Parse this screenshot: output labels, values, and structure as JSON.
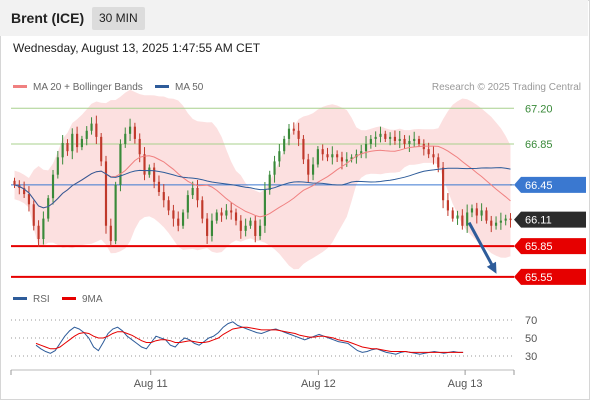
{
  "instrument": "Brent (ICE)",
  "timeframe": "30 MIN",
  "timestamp": "Wednesday, August 13, 2025 1:47:55 AM CET",
  "legend": {
    "ma20": "MA 20 + Bollinger Bands",
    "ma50": "MA 50",
    "rsi": "RSI",
    "ma9": "9MA"
  },
  "credit": "Research © 2025 Trading Central",
  "colors": {
    "up": "#3a8a3a",
    "down": "#c0392b",
    "ma20": "#f08080",
    "ma50": "#2e5c9a",
    "band": "#fbdada",
    "red_level": "#e60000",
    "blue_level": "#3a78d0",
    "green_level": "#a8d08d",
    "arrow": "#2e5c9a"
  },
  "chart_data": [
    {
      "type": "candlestick",
      "y_range": [
        65.47,
        67.33
      ],
      "x_range": [
        0,
        144
      ],
      "x_ticks": [
        {
          "x": 40,
          "label": "Aug 11"
        },
        {
          "x": 88,
          "label": "Aug 12"
        },
        {
          "x": 130,
          "label": "Aug 13"
        }
      ],
      "levels": [
        {
          "value": 67.2,
          "label": "67.20",
          "style": "green-text"
        },
        {
          "value": 66.85,
          "label": "66.85",
          "style": "green-text"
        },
        {
          "value": 66.45,
          "label": "66.45",
          "style": "blue-tag"
        },
        {
          "value": 66.11,
          "label": "66.11",
          "style": "price-tag"
        },
        {
          "value": 65.85,
          "label": "65.85",
          "style": "red-tag"
        },
        {
          "value": 65.55,
          "label": "65.55",
          "style": "red-tag"
        }
      ],
      "projection": {
        "from": [
          130,
          66.11
        ],
        "to": [
          139,
          65.58
        ]
      },
      "closes": [
        66.45,
        66.42,
        66.36,
        66.26,
        66.05,
        65.92,
        66.12,
        66.32,
        66.55,
        66.72,
        66.86,
        66.78,
        66.95,
        66.82,
        66.9,
        66.98,
        67.05,
        66.92,
        66.68,
        66.05,
        65.9,
        66.45,
        66.85,
        66.95,
        67.02,
        66.9,
        66.75,
        66.55,
        66.62,
        66.48,
        66.38,
        66.3,
        66.2,
        66.12,
        66.05,
        66.18,
        66.35,
        66.42,
        66.3,
        66.12,
        65.95,
        66.1,
        66.18,
        66.15,
        66.2,
        66.18,
        66.1,
        66.0,
        66.05,
        66.1,
        65.95,
        66.05,
        66.4,
        66.55,
        66.68,
        66.78,
        66.9,
        67.0,
        66.98,
        66.9,
        66.7,
        66.55,
        66.65,
        66.8,
        66.75,
        66.72,
        66.75,
        66.72,
        66.68,
        66.7,
        66.72,
        66.75,
        66.78,
        66.85,
        66.9,
        66.92,
        66.95,
        66.9,
        66.92,
        66.88,
        66.9,
        66.85,
        66.88,
        66.9,
        66.85,
        66.8,
        66.75,
        66.72,
        66.62,
        66.3,
        66.2,
        66.12,
        66.15,
        66.05,
        66.18,
        66.22,
        66.15,
        66.2,
        66.1,
        66.05,
        66.08,
        66.1,
        66.12,
        66.11
      ]
    },
    {
      "type": "line",
      "title": "RSI",
      "y_ticks": [
        70,
        50,
        30
      ],
      "series": [
        {
          "name": "RSI",
          "values": [
            42,
            38,
            35,
            33,
            36,
            44,
            52,
            58,
            62,
            60,
            56,
            50,
            40,
            36,
            45,
            55,
            60,
            62,
            58,
            52,
            48,
            44,
            40,
            38,
            45,
            52,
            50,
            48,
            42,
            40,
            46,
            50,
            48,
            44,
            42,
            46,
            50,
            52,
            56,
            62,
            66,
            68,
            64,
            62,
            60,
            58,
            56,
            55,
            57,
            59,
            60,
            58,
            56,
            54,
            52,
            50,
            48,
            50,
            52,
            54,
            52,
            50,
            48,
            46,
            45,
            44,
            40,
            36,
            34,
            35,
            37,
            38,
            36,
            34,
            33,
            32,
            34,
            35,
            34,
            33,
            32,
            33,
            34,
            35,
            34,
            33,
            34,
            35,
            34,
            34
          ]
        },
        {
          "name": "9MA",
          "values": [
            44,
            42,
            40,
            38,
            38,
            40,
            44,
            48,
            52,
            55,
            56,
            55,
            52,
            50,
            50,
            52,
            55,
            57,
            57,
            55,
            53,
            50,
            47,
            45,
            45,
            47,
            48,
            48,
            47,
            45,
            45,
            46,
            47,
            46,
            45,
            45,
            46,
            48,
            50,
            54,
            57,
            60,
            61,
            62,
            62,
            61,
            60,
            59,
            59,
            59,
            59,
            58,
            57,
            56,
            55,
            53,
            52,
            51,
            51,
            52,
            52,
            51,
            50,
            48,
            47,
            46,
            44,
            42,
            40,
            39,
            38,
            38,
            37,
            36,
            35,
            35,
            35,
            35,
            34,
            34,
            34,
            34,
            34,
            34,
            34,
            34,
            34,
            34,
            34,
            34
          ]
        }
      ]
    }
  ]
}
